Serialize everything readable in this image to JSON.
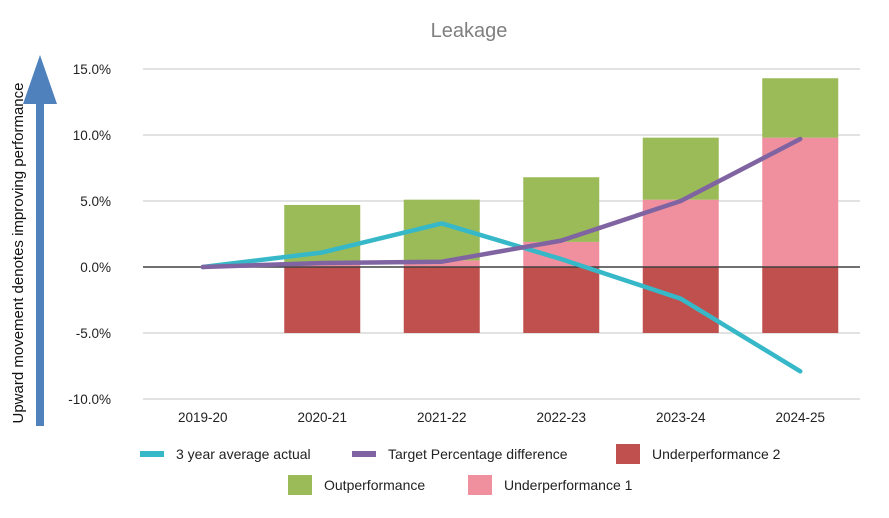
{
  "chart_data": {
    "type": "bar",
    "title": "Leakage",
    "side_label": "Upward movement denotes improving performance",
    "categories": [
      "2019-20",
      "2020-21",
      "2021-22",
      "2022-23",
      "2023-24",
      "2024-25"
    ],
    "y_ticks": [
      "15.0%",
      "10.0%",
      "5.0%",
      "0.0%",
      "-5.0%",
      "-10.0%"
    ],
    "ylim": [
      -10,
      15
    ],
    "series": [
      {
        "name": "Underperformance 2",
        "kind": "bar",
        "color": "#c0504d",
        "values": [
          0,
          -5.0,
          -5.0,
          -5.0,
          -5.0,
          -5.0
        ]
      },
      {
        "name": "Underperformance 1",
        "kind": "bar",
        "color": "#f0909f",
        "values": [
          0,
          0.3,
          0.5,
          1.9,
          5.1,
          9.8
        ]
      },
      {
        "name": "Outperformance",
        "kind": "bar",
        "color": "#9bbb59",
        "values": [
          0,
          4.4,
          4.6,
          4.9,
          4.7,
          4.5
        ]
      },
      {
        "name": "3 year average actual",
        "kind": "line",
        "color": "#36b8c8",
        "values": [
          0.0,
          1.1,
          3.3,
          0.6,
          -2.4,
          -7.9
        ]
      },
      {
        "name": "Target Percentage difference",
        "kind": "line",
        "color": "#8064a2",
        "values": [
          0.0,
          0.3,
          0.4,
          2.0,
          5.0,
          9.7
        ]
      }
    ],
    "legend": {
      "row1": [
        {
          "label": "3 year average actual",
          "color": "#36b8c8",
          "kind": "line"
        },
        {
          "label": "Target Percentage difference",
          "color": "#8064a2",
          "kind": "line"
        },
        {
          "label": "Underperformance 2",
          "color": "#c0504d",
          "kind": "box"
        }
      ],
      "row2": [
        {
          "label": "Outperformance",
          "color": "#9bbb59",
          "kind": "box"
        },
        {
          "label": "Underperformance 1",
          "color": "#f0909f",
          "kind": "box"
        }
      ]
    },
    "arrow_color": "#4f81bd"
  }
}
